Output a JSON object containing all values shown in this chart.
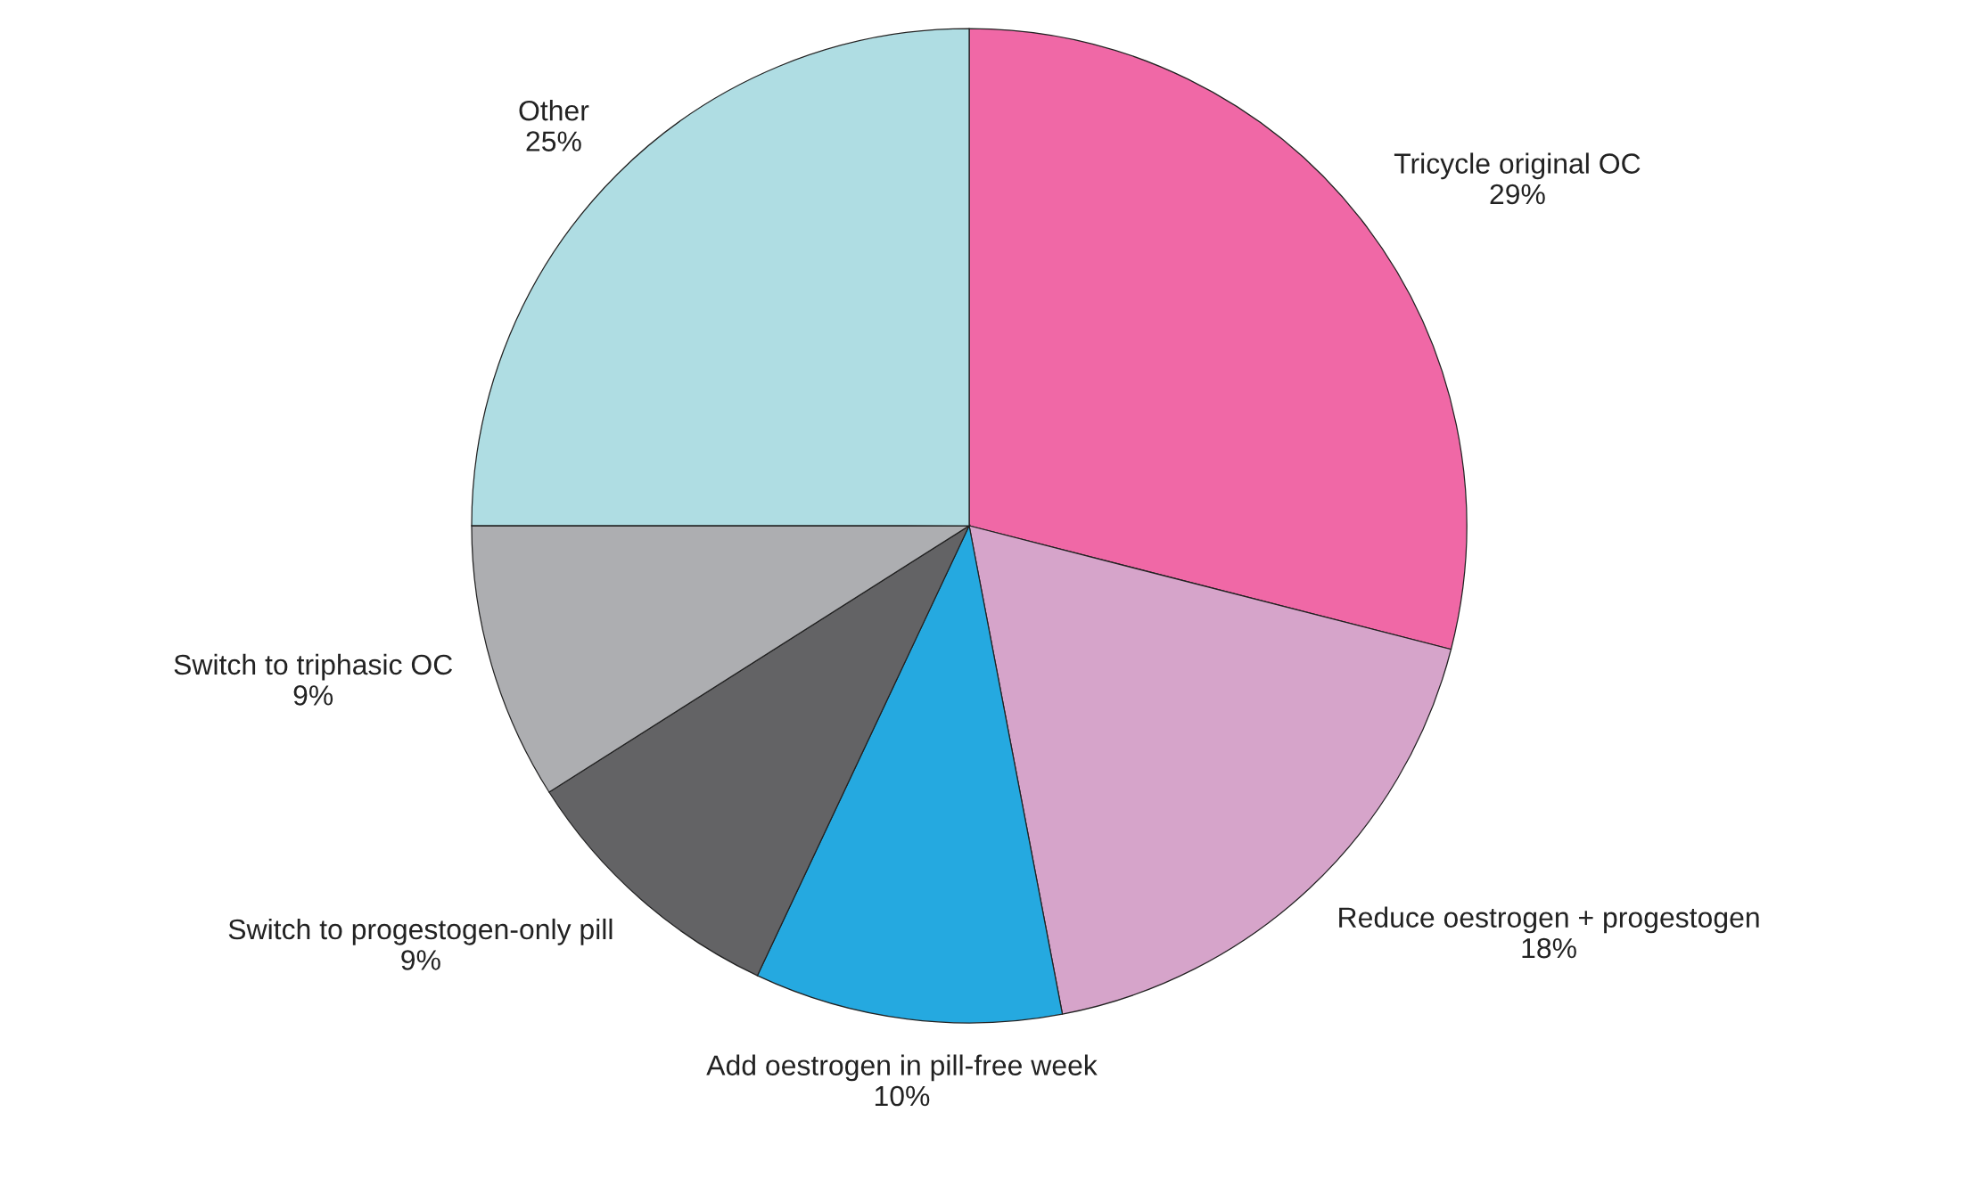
{
  "chart_data": {
    "type": "pie",
    "categories": [
      "Tricycle original OC",
      "Reduce oestrogen + progestogen",
      "Add oestrogen in pill-free week",
      "Switch to progestogen-only pill",
      "Switch to triphasic OC",
      "Other"
    ],
    "values": [
      29,
      18,
      10,
      9,
      9,
      25
    ],
    "colors": [
      "#f068a6",
      "#d6a4ca",
      "#25a9e0",
      "#636365",
      "#adaeb1",
      "#afdde3"
    ],
    "value_labels": [
      "29%",
      "18%",
      "10%",
      "9%",
      "9%",
      "25%"
    ]
  }
}
